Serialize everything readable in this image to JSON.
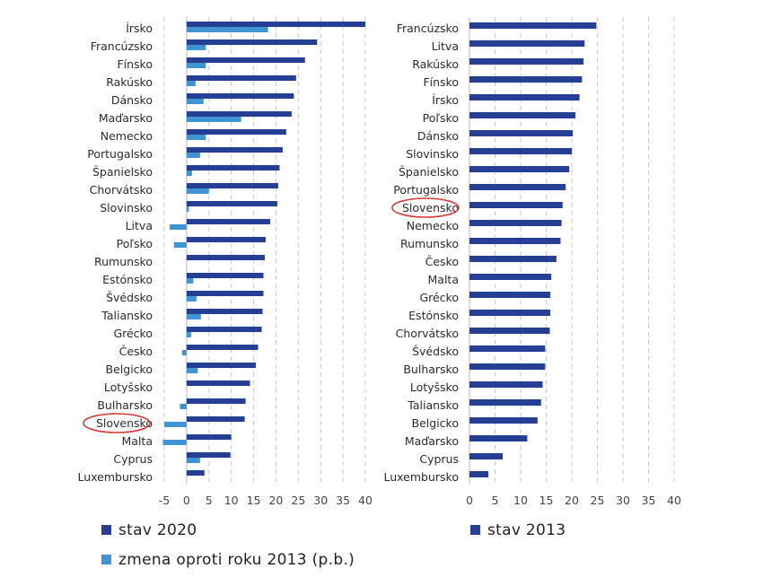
{
  "chart_data": [
    {
      "type": "bar",
      "orientation": "horizontal",
      "categories": [
        "Írsko",
        "Francúzsko",
        "Fínsko",
        "Rakúsko",
        "Dánsko",
        "Maďarsko",
        "Nemecko",
        "Portugalsko",
        "Španielsko",
        "Chorvátsko",
        "Slovinsko",
        "Litva",
        "Poľsko",
        "Rumunsko",
        "Estónsko",
        "Švédsko",
        "Taliansko",
        "Grécko",
        "Česko",
        "Belgicko",
        "Lotyšsko",
        "Bulharsko",
        "Slovensko",
        "Malta",
        "Cyprus",
        "Luxembursko"
      ],
      "series": [
        {
          "name": "stav 2020",
          "color": "#253f94",
          "values": [
            40,
            29.2,
            26.5,
            24.5,
            24,
            23.5,
            22.3,
            21.5,
            20.8,
            20.5,
            20.3,
            18.7,
            17.7,
            17.5,
            17.2,
            17.2,
            17,
            16.8,
            16,
            15.5,
            14.2,
            13.2,
            13,
            10,
            9.8,
            4
          ]
        },
        {
          "name": "zmena oproti roku 2013 (p.b.)",
          "color": "#3f95d2",
          "values": [
            18.2,
            4.3,
            4.3,
            2,
            3.8,
            12.2,
            4.3,
            3,
            1.2,
            5,
            0.5,
            -3.8,
            -2.8,
            0,
            1.5,
            2.2,
            3.2,
            1,
            -1,
            2.5,
            0,
            -1.5,
            -5,
            -5.3,
            3,
            0
          ]
        }
      ],
      "xlim": [
        -5,
        40
      ],
      "xticks": [
        -5,
        0,
        5,
        10,
        15,
        20,
        25,
        30,
        35,
        40
      ],
      "grid": true,
      "highlight": "Slovensko",
      "legend": [
        "stav 2020",
        "zmena oproti roku 2013 (p.b.)"
      ]
    },
    {
      "type": "bar",
      "orientation": "horizontal",
      "categories": [
        "Francúzsko",
        "Litva",
        "Rakúsko",
        "Fínsko",
        "Írsko",
        "Poľsko",
        "Dánsko",
        "Slovinsko",
        "Španielsko",
        "Portugalsko",
        "Slovensko",
        "Nemecko",
        "Rumunsko",
        "Česko",
        "Malta",
        "Grécko",
        "Estónsko",
        "Chorvátsko",
        "Švédsko",
        "Bulharsko",
        "Lotyšsko",
        "Taliansko",
        "Belgicko",
        "Maďarsko",
        "Cyprus",
        "Luxembursko"
      ],
      "series": [
        {
          "name": "stav 2013",
          "color": "#253f94",
          "values": [
            24.8,
            22.5,
            22.3,
            22,
            21.5,
            20.7,
            20.2,
            20,
            19.5,
            18.8,
            18.2,
            18,
            17.8,
            17,
            16,
            15.8,
            15.8,
            15.7,
            14.8,
            14.8,
            14.3,
            14,
            13.3,
            11.3,
            6.5,
            3.7
          ]
        }
      ],
      "xlim": [
        0,
        40
      ],
      "xticks": [
        0,
        5,
        10,
        15,
        20,
        25,
        30,
        35,
        40
      ],
      "grid": true,
      "highlight": "Slovensko",
      "legend": [
        "stav 2013"
      ]
    }
  ]
}
